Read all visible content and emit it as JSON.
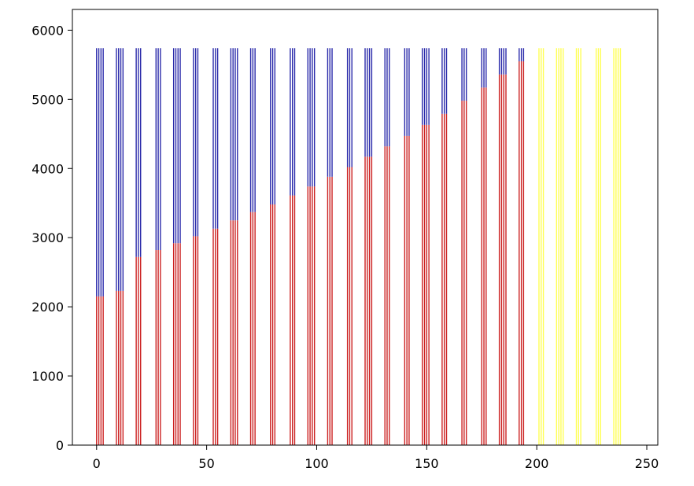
{
  "chart_data": {
    "type": "bar",
    "stacked": true,
    "title": "",
    "xlabel": "",
    "ylabel": "",
    "xlim": [
      -11,
      255
    ],
    "ylim": [
      0,
      6300
    ],
    "xticks": [
      0,
      50,
      100,
      150,
      200,
      250
    ],
    "yticks": [
      0,
      1000,
      2000,
      3000,
      4000,
      5000,
      6000
    ],
    "grid": false,
    "legend": null,
    "colors": {
      "bottom": "#cc2222",
      "top": "#2a2aaa",
      "yellow": "#ffff55",
      "frame": "#000000"
    },
    "bar_width": 0.5,
    "total": 5740,
    "groups": [
      {
        "x": [
          0,
          1,
          2,
          3
        ],
        "bottom": 2150
      },
      {
        "x": [
          9,
          10,
          11,
          12
        ],
        "bottom": 2230
      },
      {
        "x": [
          18,
          19,
          20
        ],
        "bottom": 2720
      },
      {
        "x": [
          27,
          28,
          29
        ],
        "bottom": 2820
      },
      {
        "x": [
          35,
          36,
          37,
          38
        ],
        "bottom": 2920
      },
      {
        "x": [
          44,
          45,
          46
        ],
        "bottom": 3020
      },
      {
        "x": [
          53,
          54,
          55
        ],
        "bottom": 3130
      },
      {
        "x": [
          61,
          62,
          63,
          64
        ],
        "bottom": 3250
      },
      {
        "x": [
          70,
          71,
          72
        ],
        "bottom": 3370
      },
      {
        "x": [
          79,
          80,
          81
        ],
        "bottom": 3480
      },
      {
        "x": [
          88,
          89,
          90
        ],
        "bottom": 3610
      },
      {
        "x": [
          96,
          97,
          98,
          99
        ],
        "bottom": 3740
      },
      {
        "x": [
          105,
          106,
          107
        ],
        "bottom": 3880
      },
      {
        "x": [
          114,
          115,
          116
        ],
        "bottom": 4020
      },
      {
        "x": [
          122,
          123,
          124,
          125
        ],
        "bottom": 4170
      },
      {
        "x": [
          131,
          132,
          133
        ],
        "bottom": 4320
      },
      {
        "x": [
          140,
          141,
          142
        ],
        "bottom": 4470
      },
      {
        "x": [
          148,
          149,
          150,
          151
        ],
        "bottom": 4630
      },
      {
        "x": [
          157,
          158,
          159
        ],
        "bottom": 4790
      },
      {
        "x": [
          166,
          167,
          168
        ],
        "bottom": 4980
      },
      {
        "x": [
          175,
          176,
          177
        ],
        "bottom": 5170
      },
      {
        "x": [
          183,
          184,
          185,
          186
        ],
        "bottom": 5360
      },
      {
        "x": [
          192,
          193,
          194
        ],
        "bottom": 5550
      }
    ],
    "yellow_bars": {
      "x": [
        201,
        202,
        203,
        209,
        210,
        211,
        212,
        218,
        219,
        220,
        227,
        228,
        229,
        235,
        236,
        237,
        238
      ],
      "value": 5740
    }
  }
}
